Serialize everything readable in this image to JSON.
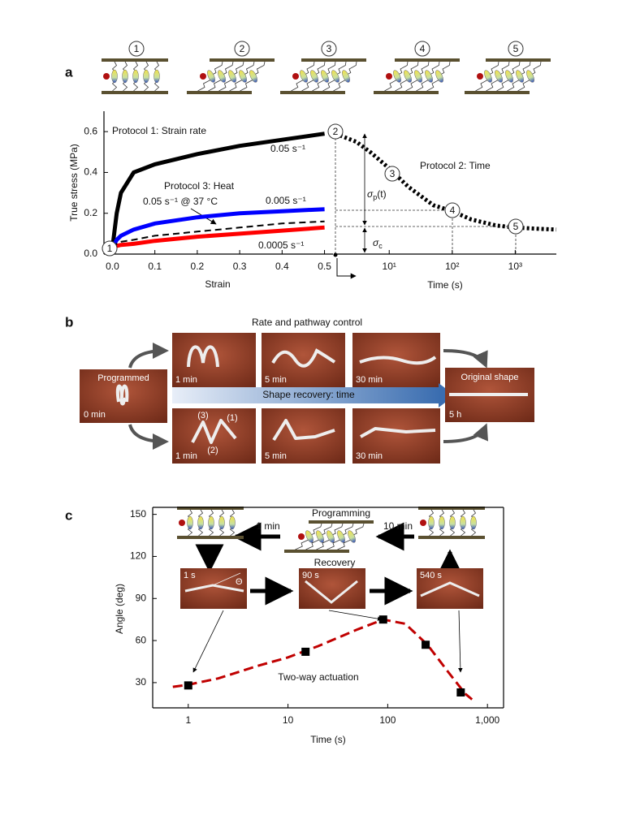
{
  "panel_labels": [
    "a",
    "b",
    "c"
  ],
  "panel_a": {
    "schematic_labels": [
      "1",
      "2",
      "3",
      "4",
      "5"
    ]
  },
  "chart_data": [
    {
      "type": "line",
      "xlabel": "Strain",
      "ylabel": "True stress (MPa)",
      "x": [
        0,
        0.01,
        0.02,
        0.05,
        0.1,
        0.2,
        0.3,
        0.4,
        0.5
      ],
      "series": [
        {
          "name": "0.05 s⁻¹",
          "color": "#000000",
          "style": "solid",
          "values": [
            0.03,
            0.2,
            0.3,
            0.4,
            0.44,
            0.49,
            0.53,
            0.56,
            0.59
          ]
        },
        {
          "name": "0.005 s⁻¹",
          "color": "#0000ff",
          "style": "solid",
          "values": [
            0.03,
            0.07,
            0.09,
            0.12,
            0.15,
            0.18,
            0.2,
            0.21,
            0.22
          ]
        },
        {
          "name": "0.0005 s⁻¹",
          "color": "#ff0000",
          "style": "solid",
          "values": [
            0.03,
            0.04,
            0.045,
            0.05,
            0.065,
            0.085,
            0.1,
            0.115,
            0.13
          ]
        },
        {
          "name": "0.05 s⁻¹ @ 37 °C",
          "color": "#000000",
          "style": "dashed",
          "values": [
            0.03,
            0.05,
            0.06,
            0.07,
            0.09,
            0.11,
            0.13,
            0.15,
            0.16
          ]
        }
      ],
      "xlim": [
        -0.02,
        0.52
      ],
      "xticks": [
        {
          "value": 0,
          "label": "0.0"
        },
        0.1,
        0.2,
        0.3,
        0.4,
        0.5
      ],
      "ylim": [
        0,
        0.7
      ],
      "yticks": [
        {
          "value": 0,
          "label": "0.0"
        },
        0.2,
        0.4,
        0.6
      ],
      "annotations": {
        "protocol": "Protocol 1:  Strain rate",
        "heat": "Protocol 3: Heat",
        "start_marker": "1",
        "end_marker": "2"
      }
    },
    {
      "type": "line",
      "xlabel": "Time (s)",
      "log_x": true,
      "x": [
        1.4,
        3,
        5,
        10,
        20,
        50,
        100,
        200,
        500,
        1000,
        2000,
        4500
      ],
      "series": [
        {
          "color": "#000000",
          "style": "dotted",
          "values": [
            0.59,
            0.55,
            0.5,
            0.42,
            0.33,
            0.24,
            0.21,
            0.17,
            0.14,
            0.13,
            0.125,
            0.12
          ]
        }
      ],
      "xlim": [
        1.4,
        4500
      ],
      "xticks": [
        {
          "value": 10,
          "label": "10¹"
        },
        {
          "value": 100,
          "label": "10²"
        },
        {
          "value": 1000,
          "label": "10³"
        }
      ],
      "ylim": [
        0,
        0.7
      ],
      "annotations": {
        "protocol": "Protocol 2:  Time",
        "markers": [
          "3",
          "4",
          "5"
        ],
        "sigma_p": {
          "base": "σ",
          "sub": "p",
          "tail": "(t)"
        },
        "sigma_c": {
          "base": "σ",
          "sub": "c"
        }
      }
    },
    {
      "type": "scatter",
      "xlabel": "Time (s)",
      "ylabel": "Angle (deg)",
      "log_x": true,
      "x": [
        1,
        15,
        90,
        240,
        540
      ],
      "values": [
        28,
        52,
        75,
        57,
        23
      ],
      "color": "#000000",
      "fit": {
        "color": "#c00000",
        "x": [
          0.7,
          1,
          2,
          5,
          10,
          20,
          50,
          90,
          150,
          250,
          400,
          600,
          700
        ],
        "values": [
          27,
          28.5,
          33,
          42,
          48,
          56,
          68,
          75,
          72,
          57,
          38,
          22,
          18
        ]
      },
      "xlim": [
        0.44,
        1450
      ],
      "xticks": [
        1,
        10,
        100,
        {
          "value": 1000,
          "label": "1,000"
        }
      ],
      "ylim": [
        12,
        155
      ],
      "yticks": [
        30,
        60,
        90,
        120,
        150
      ],
      "annotations": {
        "label": "Two-way actuation",
        "programming": "Programming",
        "recovery": "Recovery",
        "program_time": "10 min",
        "reset_time": "1 min",
        "photo_times": [
          "1 s",
          "90 s",
          "540 s"
        ],
        "angle_symbol": "Θ"
      }
    }
  ],
  "panel_b": {
    "title": "Rate and pathway control",
    "start": {
      "label": "Programmed",
      "time": "0 min"
    },
    "top_row": [
      "1 min",
      "5 min",
      "30 min"
    ],
    "bottom_row": [
      "1 min",
      "5 min",
      "30 min"
    ],
    "segment_labels": [
      "(3)",
      "(1)",
      "(2)"
    ],
    "arrow_label": "Shape recovery:  time",
    "end": {
      "label": "Original shape",
      "time": "5 h"
    }
  }
}
